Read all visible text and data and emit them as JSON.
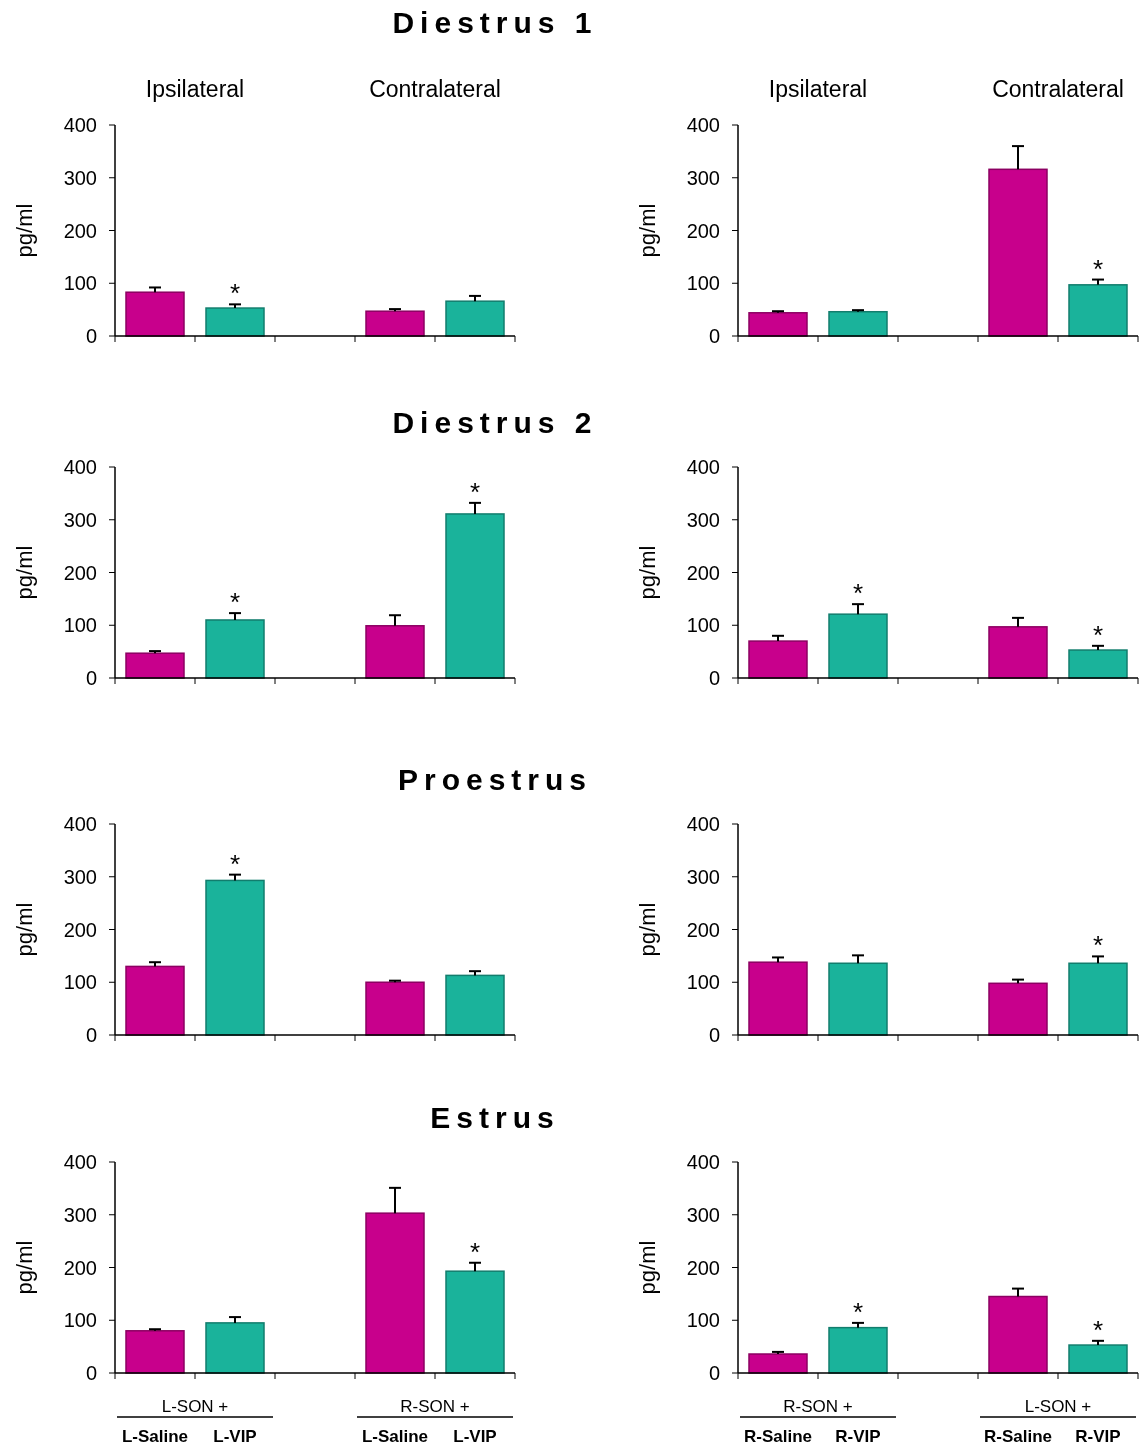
{
  "chart_data": [
    {
      "type": "bar",
      "title": "Diestrus 1",
      "ylabel": "pg/ml",
      "categories": [
        null,
        null,
        null,
        null,
        null
      ],
      "values": [
        83,
        53,
        null,
        47,
        66
      ],
      "errors": [
        9,
        7,
        null,
        4,
        10
      ],
      "value_labels": [
        null,
        "*",
        null,
        null,
        null
      ],
      "colors": [
        "#c8008c",
        "#1ab39b",
        null,
        "#c8008c",
        "#1ab39b"
      ],
      "ylim": [
        0,
        400
      ],
      "yticks": [
        0,
        100,
        200,
        300,
        400
      ],
      "annotations": [
        "Ipsilateral",
        "Contralateral"
      ]
    },
    {
      "type": "bar",
      "ylabel": "pg/ml",
      "categories": [
        null,
        null,
        null,
        null,
        null
      ],
      "values": [
        44,
        46,
        null,
        316,
        97
      ],
      "errors": [
        3,
        3,
        null,
        44,
        10
      ],
      "value_labels": [
        null,
        null,
        null,
        null,
        "*"
      ],
      "colors": [
        "#c8008c",
        "#1ab39b",
        null,
        "#c8008c",
        "#1ab39b"
      ],
      "ylim": [
        0,
        400
      ],
      "yticks": [
        0,
        100,
        200,
        300,
        400
      ],
      "annotations": [
        "Ipsilateral",
        "Contralateral"
      ]
    },
    {
      "type": "bar",
      "title": "Diestrus 2",
      "ylabel": "pg/ml",
      "categories": [
        null,
        null,
        null,
        null,
        null
      ],
      "values": [
        47,
        110,
        null,
        99,
        311
      ],
      "errors": [
        4,
        13,
        null,
        20,
        21
      ],
      "value_labels": [
        null,
        "*",
        null,
        null,
        "*"
      ],
      "colors": [
        "#c8008c",
        "#1ab39b",
        null,
        "#c8008c",
        "#1ab39b"
      ],
      "ylim": [
        0,
        400
      ],
      "yticks": [
        0,
        100,
        200,
        300,
        400
      ]
    },
    {
      "type": "bar",
      "ylabel": "pg/ml",
      "categories": [
        null,
        null,
        null,
        null,
        null
      ],
      "values": [
        70,
        121,
        null,
        97,
        53
      ],
      "errors": [
        10,
        19,
        null,
        17,
        8
      ],
      "value_labels": [
        null,
        "*",
        null,
        null,
        "*"
      ],
      "colors": [
        "#c8008c",
        "#1ab39b",
        null,
        "#c8008c",
        "#1ab39b"
      ],
      "ylim": [
        0,
        400
      ],
      "yticks": [
        0,
        100,
        200,
        300,
        400
      ]
    },
    {
      "type": "bar",
      "title": "Proestrus",
      "ylabel": "pg/ml",
      "categories": [
        null,
        null,
        null,
        null,
        null
      ],
      "values": [
        130,
        293,
        null,
        100,
        113
      ],
      "errors": [
        8,
        11,
        null,
        3,
        8
      ],
      "value_labels": [
        null,
        "*",
        null,
        null,
        null
      ],
      "colors": [
        "#c8008c",
        "#1ab39b",
        null,
        "#c8008c",
        "#1ab39b"
      ],
      "ylim": [
        0,
        400
      ],
      "yticks": [
        0,
        100,
        200,
        300,
        400
      ]
    },
    {
      "type": "bar",
      "ylabel": "pg/ml",
      "categories": [
        null,
        null,
        null,
        null,
        null
      ],
      "values": [
        138,
        136,
        null,
        98,
        136
      ],
      "errors": [
        9,
        15,
        null,
        7,
        13
      ],
      "value_labels": [
        null,
        null,
        null,
        null,
        "*"
      ],
      "colors": [
        "#c8008c",
        "#1ab39b",
        null,
        "#c8008c",
        "#1ab39b"
      ],
      "ylim": [
        0,
        400
      ],
      "yticks": [
        0,
        100,
        200,
        300,
        400
      ]
    },
    {
      "type": "bar",
      "title": "Estrus",
      "ylabel": "pg/ml",
      "categories": [
        "L-Saline",
        "L-VIP",
        null,
        "L-Saline",
        "L-VIP"
      ],
      "values": [
        80,
        95,
        null,
        303,
        193
      ],
      "errors": [
        3,
        11,
        null,
        48,
        16
      ],
      "value_labels": [
        null,
        null,
        null,
        null,
        "*"
      ],
      "colors": [
        "#c8008c",
        "#1ab39b",
        null,
        "#c8008c",
        "#1ab39b"
      ],
      "ylim": [
        0,
        400
      ],
      "yticks": [
        0,
        100,
        200,
        300,
        400
      ],
      "annotations": [
        "L-SON +",
        "R-SON +"
      ]
    },
    {
      "type": "bar",
      "ylabel": "pg/ml",
      "categories": [
        "R-Saline",
        "R-VIP",
        null,
        "R-Saline",
        "R-VIP"
      ],
      "values": [
        36,
        86,
        null,
        145,
        53
      ],
      "errors": [
        4,
        9,
        null,
        15,
        8
      ],
      "value_labels": [
        null,
        "*",
        null,
        null,
        "*"
      ],
      "colors": [
        "#c8008c",
        "#1ab39b",
        null,
        "#c8008c",
        "#1ab39b"
      ],
      "ylim": [
        0,
        400
      ],
      "yticks": [
        0,
        100,
        200,
        300,
        400
      ],
      "annotations": [
        "R-SON +",
        "L-SON +"
      ]
    }
  ]
}
